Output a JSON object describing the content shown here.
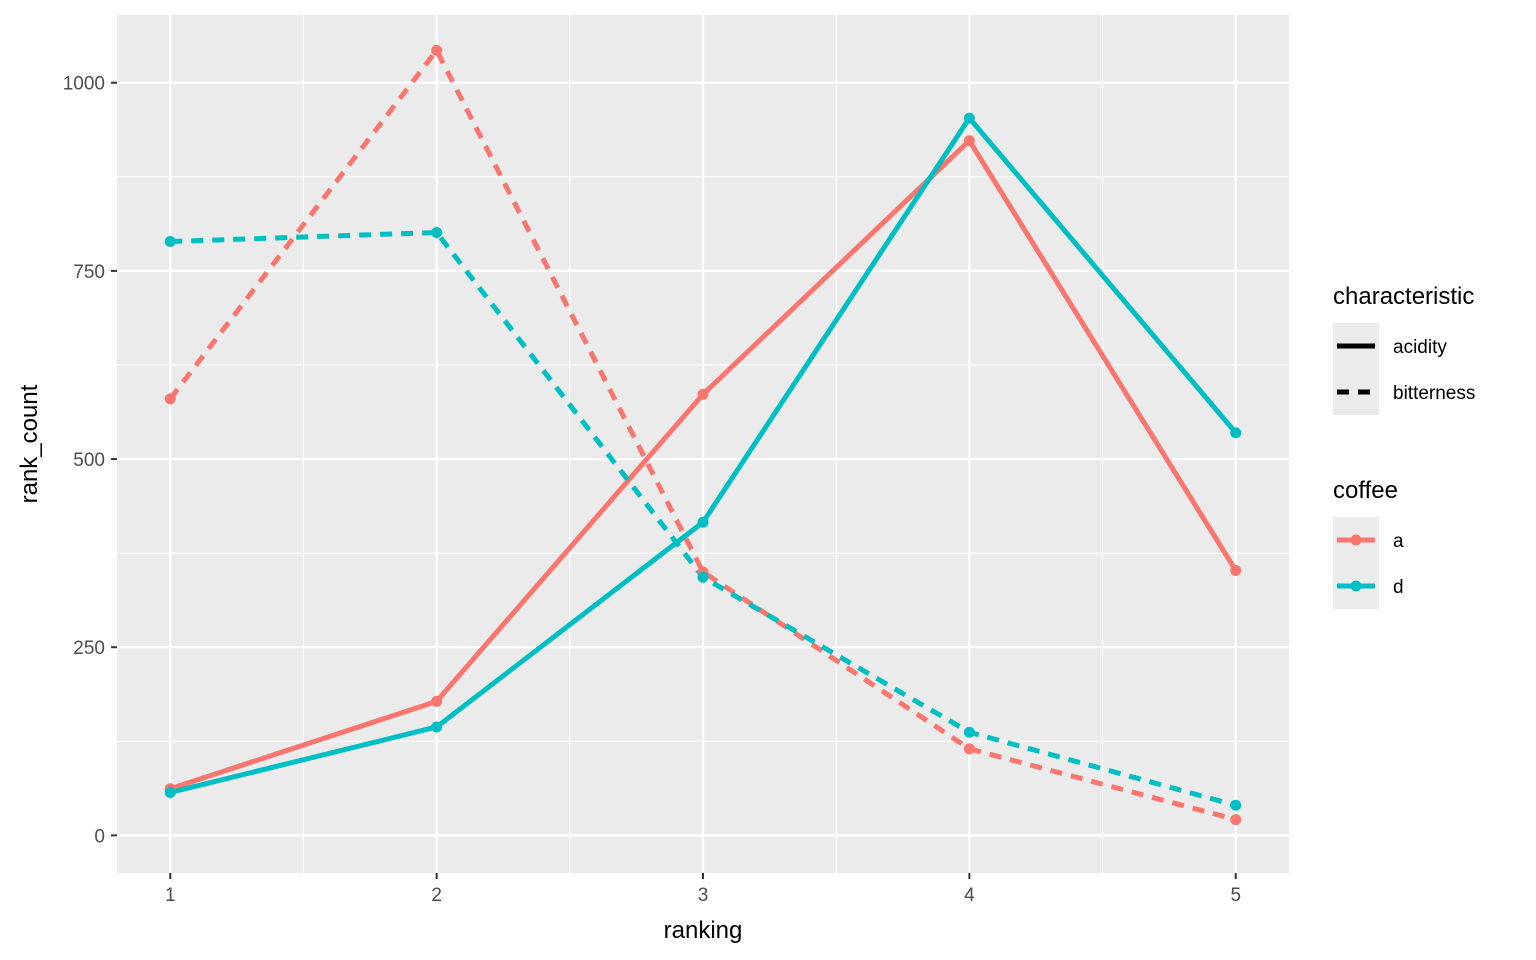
{
  "chart_data": {
    "type": "line",
    "xlabel": "ranking",
    "ylabel": "rank_count",
    "x": [
      1,
      2,
      3,
      4,
      5
    ],
    "x_ticks": [
      1,
      2,
      3,
      4,
      5
    ],
    "y_ticks": [
      0,
      250,
      500,
      750,
      1000
    ],
    "xlim": [
      0.8,
      5.2
    ],
    "ylim": [
      -50,
      1090
    ],
    "grid": true,
    "legend_placement": "right",
    "series": [
      {
        "coffee": "a",
        "characteristic": "acidity",
        "color": "#F8766D",
        "dash": "solid",
        "values": [
          62,
          178,
          586,
          923,
          352
        ]
      },
      {
        "coffee": "d",
        "characteristic": "acidity",
        "color": "#00BFC4",
        "dash": "solid",
        "values": [
          57,
          144,
          416,
          953,
          535
        ]
      },
      {
        "coffee": "a",
        "characteristic": "bitterness",
        "color": "#F8766D",
        "dash": "dashed",
        "values": [
          580,
          1043,
          350,
          115,
          21
        ]
      },
      {
        "coffee": "d",
        "characteristic": "bitterness",
        "color": "#00BFC4",
        "dash": "dashed",
        "values": [
          789,
          801,
          343,
          137,
          40
        ]
      }
    ],
    "legends": [
      {
        "title": "characteristic",
        "entries": [
          {
            "label": "acidity",
            "dash": "solid"
          },
          {
            "label": "bitterness",
            "dash": "dashed"
          }
        ]
      },
      {
        "title": "coffee",
        "entries": [
          {
            "label": "a",
            "color": "#F8766D"
          },
          {
            "label": "d",
            "color": "#00BFC4"
          }
        ]
      }
    ]
  }
}
